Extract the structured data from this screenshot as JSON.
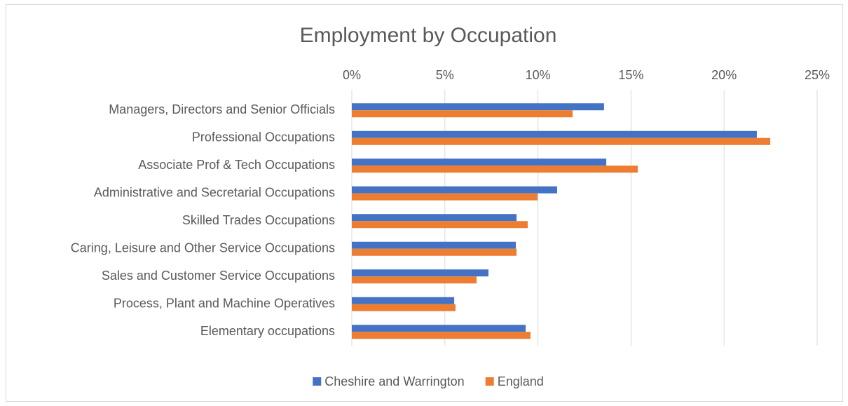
{
  "chart_data": {
    "type": "hbar",
    "title": "Employment by Occupation",
    "categories": [
      "Managers, Directors and Senior Officials",
      "Professional Occupations",
      "Associate Prof & Tech Occupations",
      "Administrative and Secretarial Occupations",
      "Skilled Trades Occupations",
      "Caring, Leisure and Other Service Occupations",
      "Sales and Customer Service Occupations",
      "Process, Plant and Machine Operatives",
      "Elementary occupations"
    ],
    "series": [
      {
        "name": "Cheshire and Warrington",
        "color": "#4472c4",
        "values": [
          13.55,
          21.76,
          13.67,
          11.03,
          8.85,
          8.81,
          7.34,
          5.5,
          9.34
        ]
      },
      {
        "name": "England",
        "color": "#ed7d31",
        "values": [
          11.86,
          22.48,
          15.36,
          9.98,
          9.45,
          8.85,
          6.7,
          5.57,
          9.6
        ]
      }
    ],
    "xlim": [
      0,
      25
    ],
    "xticks": [
      {
        "value": 0,
        "label": "0%"
      },
      {
        "value": 5,
        "label": "5%"
      },
      {
        "value": 10,
        "label": "10%"
      },
      {
        "value": 15,
        "label": "15%"
      },
      {
        "value": 20,
        "label": "20%"
      },
      {
        "value": 25,
        "label": "25%"
      }
    ],
    "grid": true,
    "legend": "bottom"
  }
}
